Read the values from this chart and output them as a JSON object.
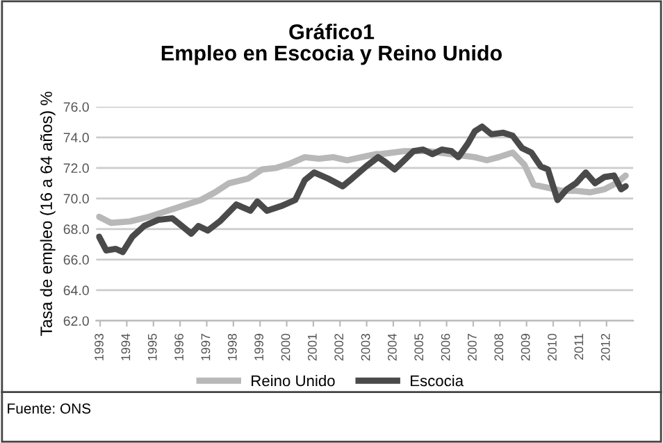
{
  "chart_data": {
    "type": "line",
    "title": "Gráfico1\nEmpleo en Escocia y Reino Unido",
    "ylabel": "Tasa de empleo (16 a 64 años) %",
    "xlim": [
      1992.85,
      2013.0
    ],
    "xticks": [
      {
        "value": 1993,
        "label": "1993"
      },
      {
        "value": 1994,
        "label": "1994"
      },
      {
        "value": 1995,
        "label": "1995"
      },
      {
        "value": 1996,
        "label": "1996"
      },
      {
        "value": 1997,
        "label": "1997"
      },
      {
        "value": 1998,
        "label": "1998"
      },
      {
        "value": 1999,
        "label": "1999"
      },
      {
        "value": 2000,
        "label": "2000"
      },
      {
        "value": 2001,
        "label": "2001"
      },
      {
        "value": 2002,
        "label": "2002"
      },
      {
        "value": 2003,
        "label": "2003"
      },
      {
        "value": 2004,
        "label": "2004"
      },
      {
        "value": 2005,
        "label": "2005"
      },
      {
        "value": 2006,
        "label": "2006"
      },
      {
        "value": 2007,
        "label": "2007"
      },
      {
        "value": 2008,
        "label": "2008"
      },
      {
        "value": 2009,
        "label": "2009"
      },
      {
        "value": 2010,
        "label": "2010"
      },
      {
        "value": 2011,
        "label": "2011"
      },
      {
        "value": 2012,
        "label": "2012"
      }
    ],
    "ylim": [
      62,
      76
    ],
    "yticks": [
      {
        "value": 62,
        "label": "62.0"
      },
      {
        "value": 64,
        "label": "64.0"
      },
      {
        "value": 66,
        "label": "66.0"
      },
      {
        "value": 68,
        "label": "68.0"
      },
      {
        "value": 70,
        "label": "70.0"
      },
      {
        "value": 72,
        "label": "72.0"
      },
      {
        "value": 74,
        "label": "74.0"
      },
      {
        "value": 76,
        "label": "76.0"
      }
    ],
    "grid": "y",
    "legend": "bottom",
    "marker": "none",
    "line_style": "solid",
    "series": [
      {
        "name": "Reino Unido",
        "color": "#b8b8b8",
        "x": [
          1992.96,
          1993.41,
          1994.12,
          1994.83,
          1995.36,
          1996.07,
          1996.78,
          1997.31,
          1997.84,
          1998.55,
          1999.08,
          1999.61,
          2000.15,
          2000.68,
          2001.21,
          2001.74,
          2002.27,
          2002.8,
          2003.34,
          2003.52,
          2004.41,
          2005.29,
          2006.18,
          2007.06,
          2007.51,
          2007.95,
          2008.48,
          2008.92,
          2009.27,
          2009.8,
          2010.33,
          2010.86,
          2011.39,
          2011.92,
          2012.37,
          2012.72
        ],
        "values": [
          68.8,
          68.4,
          68.5,
          68.8,
          69.1,
          69.5,
          69.9,
          70.4,
          71.0,
          71.3,
          71.9,
          72.0,
          72.3,
          72.7,
          72.6,
          72.7,
          72.5,
          72.7,
          72.9,
          72.9,
          73.1,
          73.1,
          72.9,
          72.7,
          72.5,
          72.7,
          73.0,
          72.2,
          70.9,
          70.7,
          70.5,
          70.5,
          70.4,
          70.6,
          71.0,
          71.5
        ]
      },
      {
        "name": "Escocia",
        "color": "#4a4a4a",
        "x": [
          1992.96,
          1993.23,
          1993.59,
          1993.85,
          1994.21,
          1994.65,
          1995.18,
          1995.71,
          1996.07,
          1996.42,
          1996.69,
          1997.04,
          1997.49,
          1998.11,
          1998.64,
          1998.9,
          1999.26,
          1999.79,
          2000.32,
          2000.68,
          2001.03,
          2001.56,
          2002.1,
          2002.45,
          2002.98,
          2003.43,
          2003.69,
          2004.05,
          2004.41,
          2004.76,
          2005.12,
          2005.47,
          2005.82,
          2006.18,
          2006.44,
          2006.8,
          2007.06,
          2007.33,
          2007.68,
          2008.13,
          2008.48,
          2008.83,
          2009.18,
          2009.53,
          2009.8,
          2010.16,
          2010.51,
          2010.86,
          2011.22,
          2011.57,
          2011.92,
          2012.28,
          2012.55,
          2012.72
        ],
        "values": [
          67.5,
          66.6,
          66.7,
          66.5,
          67.5,
          68.2,
          68.6,
          68.7,
          68.2,
          67.7,
          68.2,
          67.9,
          68.5,
          69.6,
          69.2,
          69.8,
          69.2,
          69.5,
          69.9,
          71.2,
          71.7,
          71.3,
          70.8,
          71.3,
          72.1,
          72.7,
          72.4,
          71.9,
          72.5,
          73.1,
          73.2,
          72.9,
          73.2,
          73.1,
          72.7,
          73.6,
          74.4,
          74.7,
          74.2,
          74.3,
          74.1,
          73.3,
          73.0,
          72.1,
          71.9,
          69.9,
          70.6,
          71.0,
          71.7,
          71.0,
          71.4,
          71.5,
          70.6,
          70.8
        ]
      }
    ],
    "annotations": [
      "Fuente: ONS"
    ]
  }
}
